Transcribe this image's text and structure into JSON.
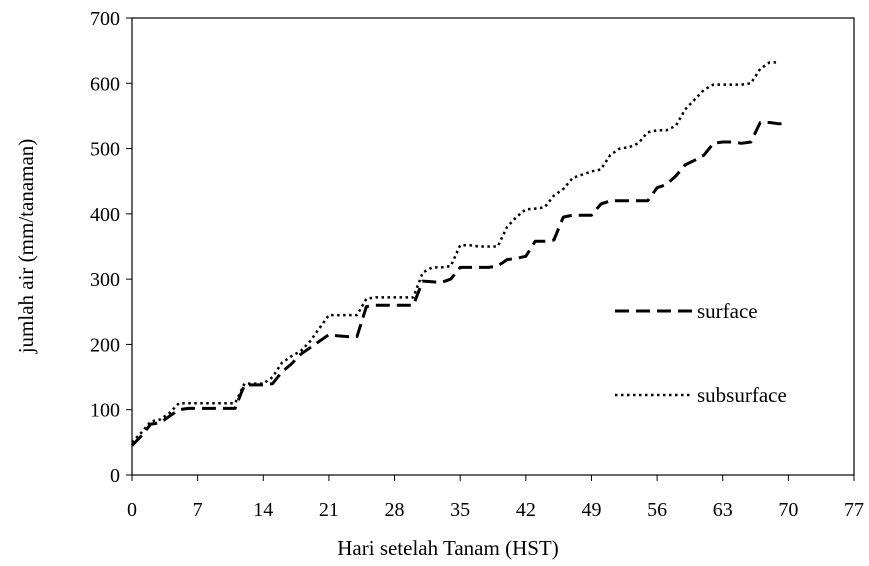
{
  "chart_data": {
    "type": "line",
    "title": "",
    "xlabel": "Hari setelah Tanam (HST)",
    "ylabel": "jumlah air (mm/tanaman)",
    "xlim": [
      0,
      77
    ],
    "ylim": [
      0,
      700
    ],
    "xticks": [
      0,
      7,
      14,
      21,
      28,
      35,
      42,
      49,
      56,
      63,
      70,
      77
    ],
    "yticks": [
      0,
      100,
      200,
      300,
      400,
      500,
      600,
      700
    ],
    "grid": false,
    "legend_position": "right",
    "series": [
      {
        "name": "surface",
        "style": "dashed",
        "color": "#000000",
        "points": [
          [
            0,
            45
          ],
          [
            1,
            60
          ],
          [
            2,
            78
          ],
          [
            3,
            80
          ],
          [
            4,
            90
          ],
          [
            5,
            100
          ],
          [
            6,
            102
          ],
          [
            7,
            102
          ],
          [
            8,
            102
          ],
          [
            9,
            102
          ],
          [
            10,
            102
          ],
          [
            11,
            102
          ],
          [
            12,
            138
          ],
          [
            13,
            138
          ],
          [
            14,
            138
          ],
          [
            15,
            140
          ],
          [
            16,
            158
          ],
          [
            17,
            170
          ],
          [
            18,
            185
          ],
          [
            19,
            195
          ],
          [
            20,
            205
          ],
          [
            21,
            215
          ],
          [
            22,
            213
          ],
          [
            23,
            212
          ],
          [
            24,
            212
          ],
          [
            25,
            258
          ],
          [
            26,
            260
          ],
          [
            27,
            260
          ],
          [
            28,
            260
          ],
          [
            29,
            260
          ],
          [
            30,
            260
          ],
          [
            31,
            297
          ],
          [
            32,
            296
          ],
          [
            33,
            295
          ],
          [
            34,
            300
          ],
          [
            35,
            318
          ],
          [
            36,
            318
          ],
          [
            37,
            318
          ],
          [
            38,
            318
          ],
          [
            39,
            320
          ],
          [
            40,
            330
          ],
          [
            41,
            332
          ],
          [
            42,
            335
          ],
          [
            43,
            358
          ],
          [
            44,
            358
          ],
          [
            45,
            360
          ],
          [
            46,
            395
          ],
          [
            47,
            398
          ],
          [
            48,
            398
          ],
          [
            49,
            398
          ],
          [
            50,
            415
          ],
          [
            51,
            420
          ],
          [
            52,
            420
          ],
          [
            53,
            420
          ],
          [
            54,
            420
          ],
          [
            55,
            420
          ],
          [
            56,
            440
          ],
          [
            57,
            445
          ],
          [
            58,
            458
          ],
          [
            59,
            475
          ],
          [
            60,
            482
          ],
          [
            61,
            490
          ],
          [
            62,
            508
          ],
          [
            63,
            510
          ],
          [
            64,
            510
          ],
          [
            65,
            508
          ],
          [
            66,
            510
          ],
          [
            67,
            540
          ],
          [
            68,
            540
          ],
          [
            69,
            538
          ],
          [
            70,
            538
          ]
        ]
      },
      {
        "name": "subsurface",
        "style": "dotted",
        "color": "#000000",
        "points": [
          [
            0,
            50
          ],
          [
            1,
            65
          ],
          [
            2,
            82
          ],
          [
            3,
            85
          ],
          [
            4,
            95
          ],
          [
            5,
            110
          ],
          [
            6,
            110
          ],
          [
            7,
            110
          ],
          [
            8,
            110
          ],
          [
            9,
            110
          ],
          [
            10,
            110
          ],
          [
            11,
            110
          ],
          [
            12,
            140
          ],
          [
            13,
            140
          ],
          [
            14,
            140
          ],
          [
            15,
            150
          ],
          [
            16,
            172
          ],
          [
            17,
            182
          ],
          [
            18,
            190
          ],
          [
            19,
            205
          ],
          [
            20,
            225
          ],
          [
            21,
            245
          ],
          [
            22,
            245
          ],
          [
            23,
            245
          ],
          [
            24,
            245
          ],
          [
            25,
            270
          ],
          [
            26,
            272
          ],
          [
            27,
            272
          ],
          [
            28,
            272
          ],
          [
            29,
            272
          ],
          [
            30,
            272
          ],
          [
            31,
            310
          ],
          [
            32,
            318
          ],
          [
            33,
            318
          ],
          [
            34,
            320
          ],
          [
            35,
            352
          ],
          [
            36,
            352
          ],
          [
            37,
            350
          ],
          [
            38,
            350
          ],
          [
            39,
            350
          ],
          [
            40,
            380
          ],
          [
            41,
            395
          ],
          [
            42,
            407
          ],
          [
            43,
            408
          ],
          [
            44,
            410
          ],
          [
            45,
            428
          ],
          [
            46,
            438
          ],
          [
            47,
            455
          ],
          [
            48,
            460
          ],
          [
            49,
            465
          ],
          [
            50,
            468
          ],
          [
            51,
            490
          ],
          [
            52,
            500
          ],
          [
            53,
            502
          ],
          [
            54,
            508
          ],
          [
            55,
            525
          ],
          [
            56,
            528
          ],
          [
            57,
            528
          ],
          [
            58,
            535
          ],
          [
            59,
            560
          ],
          [
            60,
            575
          ],
          [
            61,
            590
          ],
          [
            62,
            598
          ],
          [
            63,
            598
          ],
          [
            64,
            598
          ],
          [
            65,
            598
          ],
          [
            66,
            600
          ],
          [
            67,
            622
          ],
          [
            68,
            632
          ],
          [
            69,
            632
          ]
        ]
      }
    ]
  }
}
